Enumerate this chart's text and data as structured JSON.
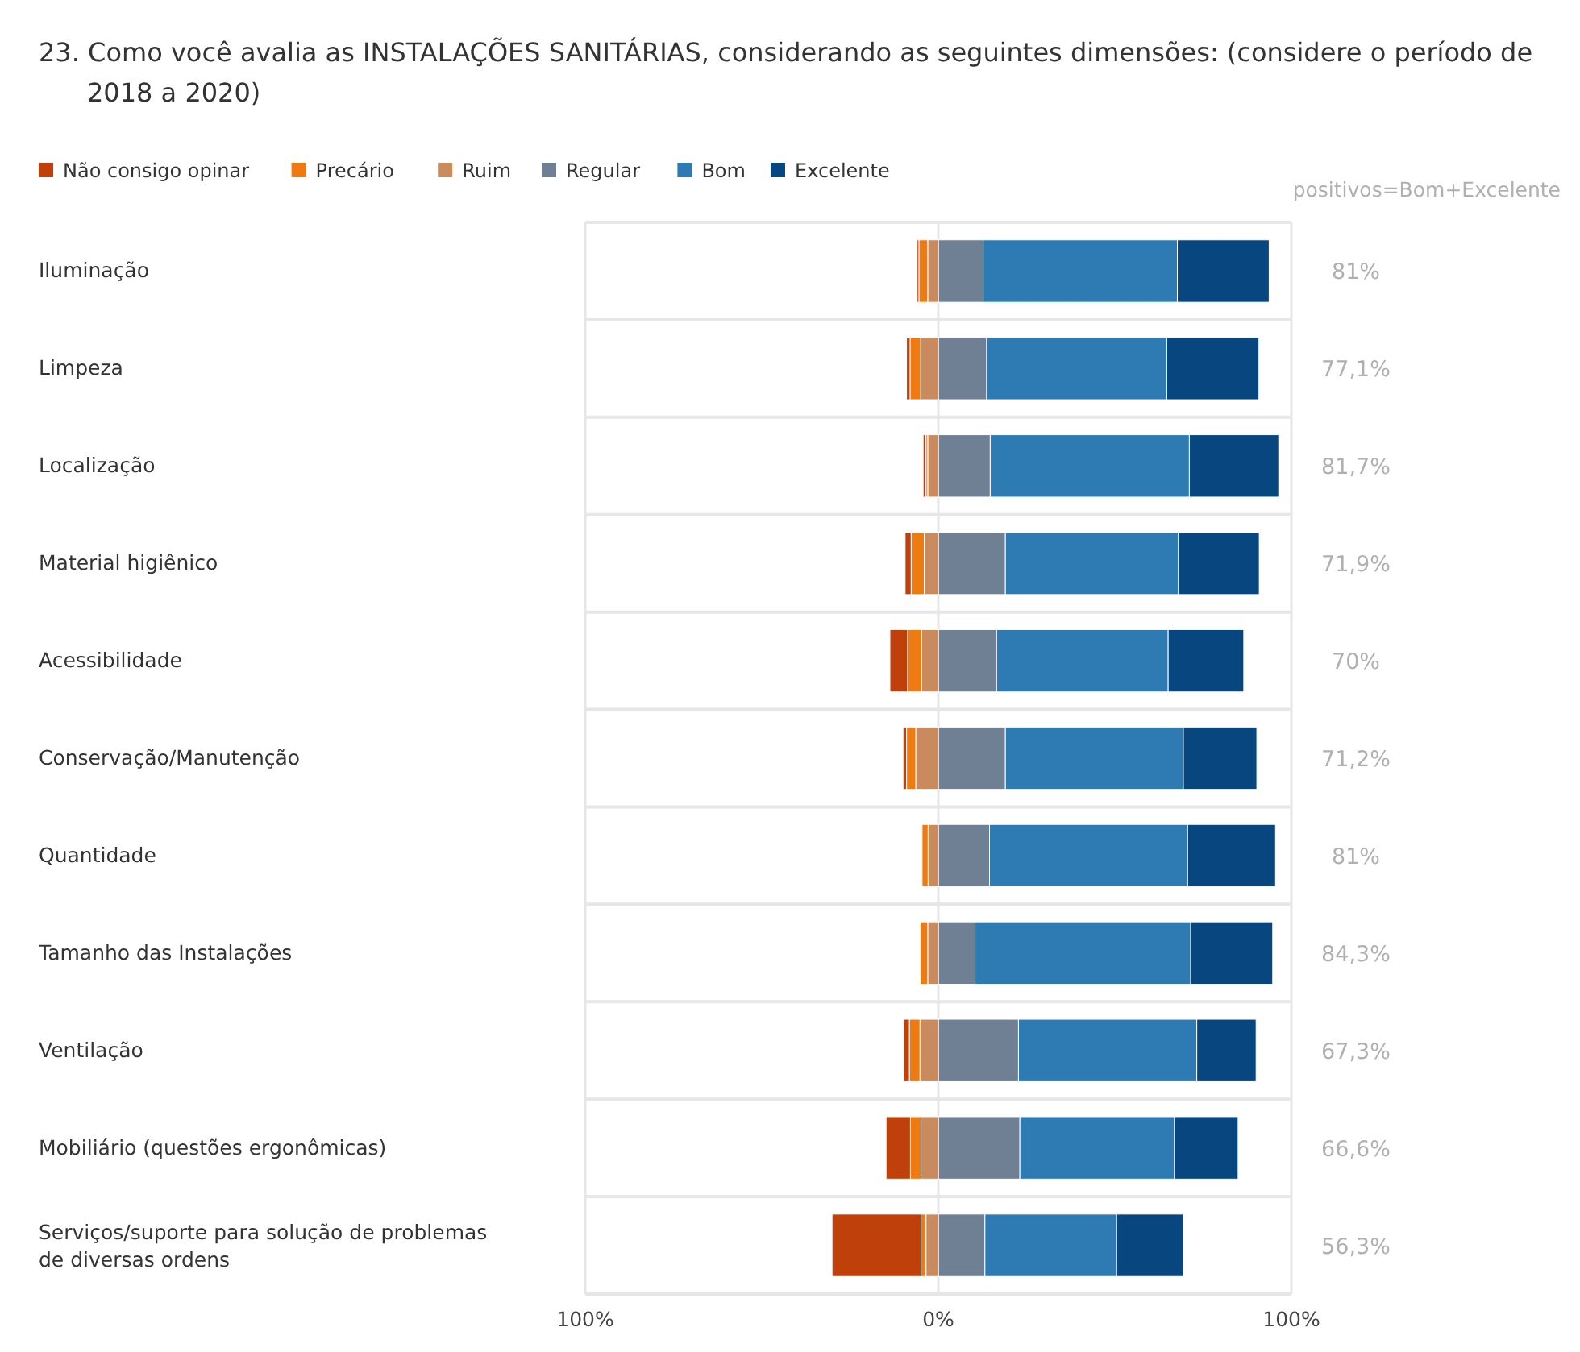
{
  "chart_data": {
    "type": "bar",
    "orientation": "horizontal",
    "stacked": true,
    "title": "23.  Como você avalia as INSTALAÇÕES SANITÁRIAS, considerando as seguintes dimensões: (considere o período de 2018 a 2020)",
    "categories": [
      "Iluminação",
      "Limpeza",
      "Localização",
      "Material higiênico",
      "Acessibilidade",
      "Conservação/Manutenção",
      "Quantidade",
      "Tamanho das Instalações",
      "Ventilação",
      "Mobiliário (questões ergonômicas)",
      "Serviços/suporte para solução de problemas de diversas ordens"
    ],
    "series": [
      {
        "name": "Ruim",
        "color": "#c98a5e",
        "values": [
          -3,
          -5,
          -3,
          -4,
          -4.7,
          -6.4,
          -2.9,
          -3,
          -5.2,
          -4.9,
          -3.5
        ]
      },
      {
        "name": "Precário",
        "color": "#ee7a12",
        "values": [
          -2.5,
          -3,
          -0.5,
          -3.7,
          -4,
          -2.6,
          -1.7,
          -2.1,
          -3,
          -3,
          -1.4
        ]
      },
      {
        "name": "Não consigo opinar",
        "color": "#c0400b",
        "values": [
          -0.5,
          -1,
          -0.8,
          -1.7,
          -5,
          -1,
          0,
          0,
          -1.7,
          -6.9,
          -25.2
        ]
      },
      {
        "name": "Regular",
        "color": "#6f7f94",
        "values": [
          12.7,
          13.7,
          14.7,
          19,
          16.5,
          19,
          14.5,
          10.4,
          22.7,
          23.1,
          13.2
        ]
      },
      {
        "name": "Bom",
        "color": "#2e7bb4",
        "values": [
          55,
          51,
          56.4,
          49,
          48.6,
          50.4,
          56.1,
          61.1,
          50.5,
          43.8,
          37.3
        ]
      },
      {
        "name": "Excelente",
        "color": "#08467f",
        "values": [
          26,
          26.1,
          25.3,
          22.9,
          21.4,
          20.8,
          24.9,
          23.2,
          16.8,
          18,
          18.9
        ]
      }
    ],
    "xlim": [
      -100,
      100
    ],
    "xticks": [
      {
        "value": -100,
        "label": "100%"
      },
      {
        "value": 0,
        "label": "0%"
      },
      {
        "value": 100,
        "label": "100%"
      }
    ],
    "annotations": [
      "positivos=Bom+Excelente",
      "81%",
      "77,1%",
      "81,7%",
      "71,9%",
      "70%",
      "71,2%",
      "81%",
      "84,3%",
      "67,3%",
      "66,6%",
      "56,3%"
    ],
    "grid": true,
    "legend": "top left"
  }
}
